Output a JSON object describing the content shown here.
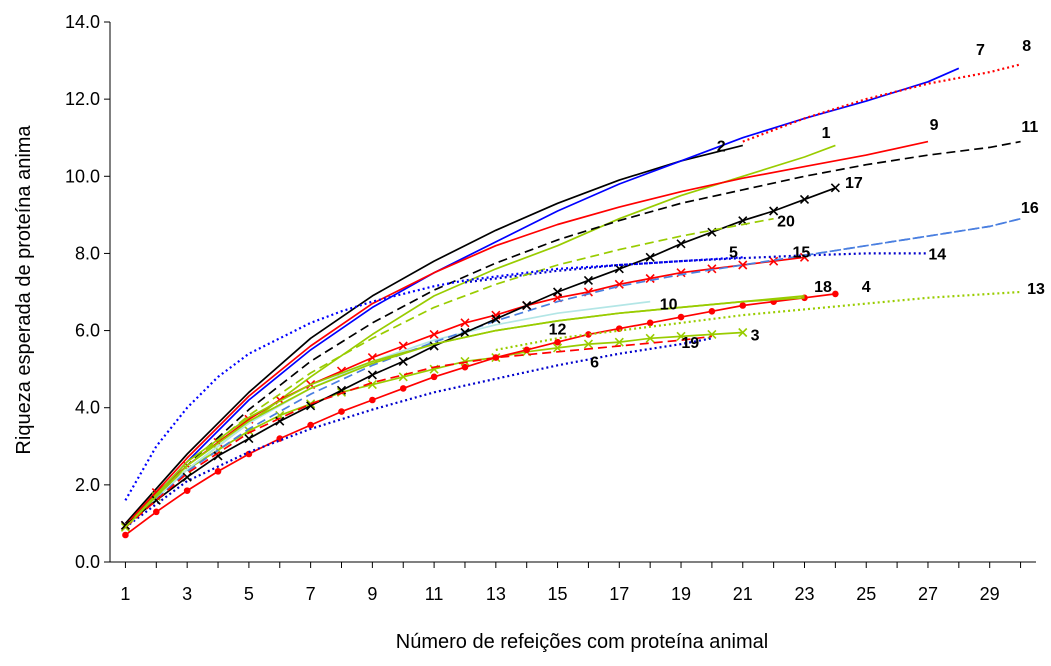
{
  "chart_data": {
    "type": "line",
    "title": "",
    "xlabel": "Número de refeições com proteína animal",
    "ylabel": "Riqueza esperada de proteína anima",
    "xlim": [
      0.5,
      30.5
    ],
    "ylim": [
      0,
      14
    ],
    "x_ticks": [
      "1",
      "3",
      "5",
      "7",
      "9",
      "11",
      "13",
      "15",
      "17",
      "19",
      "21",
      "23",
      "25",
      "27",
      "29"
    ],
    "y_ticks": [
      "0.0",
      "2.0",
      "4.0",
      "6.0",
      "8.0",
      "10.0",
      "12.0",
      "14.0"
    ],
    "grid": false,
    "legend": "none",
    "series": [
      {
        "name": "1",
        "color": "#99cc00",
        "dash": "solid",
        "marker": "none",
        "x": [
          1,
          3,
          5,
          7,
          9,
          11,
          13,
          15,
          17,
          19,
          21,
          23,
          24
        ],
        "y": [
          0.9,
          2.4,
          3.6,
          4.8,
          5.9,
          6.9,
          7.6,
          8.2,
          8.9,
          9.5,
          10.0,
          10.5,
          10.8
        ]
      },
      {
        "name": "2",
        "color": "#000000",
        "dash": "solid",
        "marker": "none",
        "x": [
          1,
          3,
          5,
          7,
          9,
          11,
          13,
          15,
          17,
          19,
          21
        ],
        "y": [
          1.0,
          2.8,
          4.4,
          5.8,
          6.9,
          7.8,
          8.6,
          9.3,
          9.9,
          10.4,
          10.8
        ]
      },
      {
        "name": "3",
        "color": "#99cc00",
        "dash": "solid",
        "marker": "x",
        "x": [
          1,
          2,
          3,
          4,
          5,
          6,
          7,
          8,
          9,
          10,
          11,
          12,
          13,
          14,
          15,
          16,
          17,
          18,
          19,
          20,
          21
        ],
        "y": [
          0.9,
          1.7,
          2.4,
          2.9,
          3.4,
          3.8,
          4.1,
          4.4,
          4.6,
          4.8,
          5.0,
          5.2,
          5.3,
          5.45,
          5.55,
          5.65,
          5.7,
          5.8,
          5.85,
          5.9,
          5.95
        ]
      },
      {
        "name": "4",
        "color": "#ff0000",
        "dash": "solid",
        "marker": "dot",
        "x": [
          1,
          2,
          3,
          4,
          5,
          6,
          7,
          8,
          9,
          10,
          11,
          12,
          13,
          14,
          15,
          16,
          17,
          18,
          19,
          20,
          21,
          22,
          23,
          24
        ],
        "y": [
          0.7,
          1.3,
          1.85,
          2.35,
          2.8,
          3.2,
          3.55,
          3.9,
          4.2,
          4.5,
          4.8,
          5.05,
          5.3,
          5.5,
          5.7,
          5.9,
          6.05,
          6.2,
          6.35,
          6.5,
          6.65,
          6.75,
          6.85,
          6.95
        ]
      },
      {
        "name": "5",
        "color": "#ff0000",
        "dash": "solid",
        "marker": "x",
        "x": [
          1,
          2,
          3,
          4,
          5,
          6,
          7,
          8,
          9,
          10,
          11,
          12,
          13,
          14,
          15,
          16,
          17,
          18,
          19,
          20,
          21,
          22,
          23
        ],
        "y": [
          0.95,
          1.8,
          2.5,
          3.1,
          3.7,
          4.2,
          4.6,
          4.95,
          5.3,
          5.6,
          5.9,
          6.2,
          6.4,
          6.65,
          6.85,
          7.0,
          7.2,
          7.35,
          7.5,
          7.6,
          7.7,
          7.8,
          7.9
        ]
      },
      {
        "name": "6",
        "color": "#0000cc",
        "dash": "dot",
        "marker": "none",
        "x": [
          1,
          3,
          5,
          7,
          9,
          11,
          13,
          15,
          17,
          19,
          20
        ],
        "y": [
          0.9,
          2.1,
          2.85,
          3.45,
          3.95,
          4.4,
          4.75,
          5.1,
          5.4,
          5.65,
          5.8
        ]
      },
      {
        "name": "7",
        "color": "#0000ff",
        "dash": "solid",
        "marker": "none",
        "x": [
          1,
          3,
          5,
          7,
          9,
          11,
          13,
          15,
          17,
          19,
          21,
          23,
          25,
          27,
          28
        ],
        "y": [
          0.9,
          2.6,
          4.2,
          5.5,
          6.6,
          7.5,
          8.3,
          9.1,
          9.8,
          10.4,
          11.0,
          11.5,
          11.95,
          12.45,
          12.8
        ]
      },
      {
        "name": "8",
        "color": "#ff0000",
        "dash": "dot",
        "marker": "none",
        "x": [
          21,
          23,
          25,
          27,
          29,
          30
        ],
        "y": [
          10.9,
          11.5,
          12.0,
          12.4,
          12.7,
          12.9
        ]
      },
      {
        "name": "9",
        "color": "#ff0000",
        "dash": "solid",
        "marker": "none",
        "x": [
          1,
          3,
          5,
          7,
          9,
          11,
          13,
          15,
          17,
          19,
          21,
          23,
          25,
          27
        ],
        "y": [
          0.95,
          2.7,
          4.3,
          5.6,
          6.7,
          7.5,
          8.2,
          8.75,
          9.2,
          9.6,
          9.95,
          10.25,
          10.55,
          10.9
        ]
      },
      {
        "name": "10",
        "color": "#b3e6e6",
        "dash": "solid",
        "marker": "none",
        "x": [
          1,
          3,
          5,
          7,
          9,
          11,
          13,
          15,
          17,
          18
        ],
        "y": [
          0.9,
          2.4,
          3.6,
          4.5,
          5.2,
          5.75,
          6.15,
          6.45,
          6.65,
          6.75
        ]
      },
      {
        "name": "11",
        "color": "#000000",
        "dash": "dash",
        "marker": "none",
        "x": [
          1,
          3,
          5,
          7,
          9,
          11,
          13,
          15,
          17,
          19,
          21,
          23,
          25,
          27,
          29,
          30
        ],
        "y": [
          0.9,
          2.5,
          3.95,
          5.2,
          6.2,
          7.05,
          7.75,
          8.35,
          8.85,
          9.3,
          9.65,
          10.0,
          10.3,
          10.55,
          10.75,
          10.9
        ]
      },
      {
        "name": "12",
        "color": "#99cc00",
        "dash": "solid",
        "marker": "none",
        "x": [
          1,
          3,
          5,
          7,
          9,
          11,
          13,
          15,
          17,
          19,
          21,
          23
        ],
        "y": [
          0.9,
          2.6,
          3.75,
          4.6,
          5.2,
          5.65,
          6.0,
          6.25,
          6.45,
          6.6,
          6.75,
          6.85
        ]
      },
      {
        "name": "13",
        "color": "#99cc00",
        "dash": "dot",
        "marker": "none",
        "x": [
          13,
          15,
          17,
          19,
          21,
          23,
          25,
          27,
          29,
          30
        ],
        "y": [
          5.5,
          5.8,
          6.0,
          6.2,
          6.4,
          6.55,
          6.7,
          6.85,
          6.95,
          7.0
        ]
      },
      {
        "name": "14",
        "color": "#0000cc",
        "dash": "dot",
        "marker": "none",
        "x": [
          12,
          13,
          14,
          15,
          16,
          17,
          19,
          21,
          23,
          25,
          27
        ],
        "y": [
          7.25,
          7.35,
          7.45,
          7.55,
          7.62,
          7.7,
          7.8,
          7.88,
          7.95,
          8.0,
          8.0
        ]
      },
      {
        "name": "15",
        "color": "#4a7fe0",
        "dash": "dash",
        "marker": "none",
        "x": [
          1,
          3,
          5,
          7,
          9,
          11,
          13,
          15,
          17,
          19,
          21,
          23,
          25,
          27,
          29,
          30
        ],
        "y": [
          0.9,
          2.35,
          3.45,
          4.35,
          5.1,
          5.7,
          6.25,
          6.75,
          7.15,
          7.45,
          7.7,
          7.95,
          8.2,
          8.45,
          8.7,
          8.9
        ]
      },
      {
        "name": "16",
        "color": "#4a7fe0",
        "dash": "dash",
        "marker": "none",
        "x": [
          23,
          25,
          27,
          29,
          30
        ],
        "y": [
          7.95,
          8.2,
          8.45,
          8.7,
          8.9
        ]
      },
      {
        "name": "17",
        "color": "#000000",
        "dash": "solid",
        "marker": "x",
        "x": [
          1,
          2,
          3,
          4,
          5,
          6,
          7,
          8,
          9,
          10,
          11,
          12,
          13,
          14,
          15,
          16,
          17,
          18,
          19,
          20,
          21,
          22,
          23,
          24
        ],
        "y": [
          0.95,
          1.6,
          2.2,
          2.75,
          3.2,
          3.65,
          4.05,
          4.45,
          4.85,
          5.2,
          5.6,
          5.95,
          6.3,
          6.65,
          7.0,
          7.3,
          7.6,
          7.9,
          8.25,
          8.55,
          8.85,
          9.1,
          9.4,
          9.7
        ]
      },
      {
        "name": "18",
        "color": "#99cc00",
        "dash": "solid",
        "marker": "none",
        "x": [
          1,
          3,
          5,
          7,
          9,
          11,
          13,
          15,
          17,
          19,
          21,
          23
        ],
        "y": [
          0.9,
          2.5,
          3.65,
          4.5,
          5.15,
          5.65,
          6.0,
          6.25,
          6.45,
          6.6,
          6.75,
          6.9
        ]
      },
      {
        "name": "19",
        "color": "#ff0000",
        "dash": "dash",
        "marker": "none",
        "x": [
          1,
          3,
          5,
          7,
          9,
          11,
          13,
          15,
          17,
          19,
          20
        ],
        "y": [
          0.9,
          2.3,
          3.35,
          4.1,
          4.65,
          5.05,
          5.3,
          5.45,
          5.6,
          5.75,
          5.85
        ]
      },
      {
        "name": "20",
        "color": "#99cc00",
        "dash": "dash",
        "marker": "none",
        "x": [
          1,
          3,
          5,
          7,
          9,
          11,
          13,
          15,
          17,
          19,
          21,
          22
        ],
        "y": [
          0.9,
          2.5,
          3.8,
          4.9,
          5.8,
          6.6,
          7.2,
          7.7,
          8.1,
          8.45,
          8.75,
          8.9
        ]
      },
      {
        "name": "",
        "color": "#0000ff",
        "dash": "dot",
        "marker": "none",
        "x": [
          1,
          2,
          3,
          4,
          5,
          6,
          7,
          8,
          9,
          10,
          11,
          12,
          13,
          14,
          15,
          16,
          17,
          18,
          19,
          20,
          21
        ],
        "y": [
          1.6,
          3.0,
          4.0,
          4.8,
          5.4,
          5.8,
          6.2,
          6.5,
          6.75,
          6.95,
          7.15,
          7.3,
          7.4,
          7.5,
          7.6,
          7.65,
          7.7,
          7.75,
          7.8,
          7.85,
          7.9
        ]
      }
    ],
    "curve_labels": [
      {
        "text": "7",
        "x": 28.7,
        "y": 13.3
      },
      {
        "text": "8",
        "x": 30.2,
        "y": 13.4
      },
      {
        "text": "9",
        "x": 27.2,
        "y": 11.35
      },
      {
        "text": "11",
        "x": 30.3,
        "y": 11.3
      },
      {
        "text": "1",
        "x": 23.7,
        "y": 11.15
      },
      {
        "text": "2",
        "x": 20.3,
        "y": 10.8
      },
      {
        "text": "17",
        "x": 24.6,
        "y": 9.85
      },
      {
        "text": "20",
        "x": 22.4,
        "y": 8.85
      },
      {
        "text": "16",
        "x": 30.3,
        "y": 9.2
      },
      {
        "text": "5",
        "x": 20.7,
        "y": 8.05
      },
      {
        "text": "15",
        "x": 22.9,
        "y": 8.05
      },
      {
        "text": "14",
        "x": 27.3,
        "y": 8.0
      },
      {
        "text": "18",
        "x": 23.6,
        "y": 7.15
      },
      {
        "text": "4",
        "x": 25.0,
        "y": 7.15
      },
      {
        "text": "13",
        "x": 30.5,
        "y": 7.1
      },
      {
        "text": "10",
        "x": 18.6,
        "y": 6.7
      },
      {
        "text": "12",
        "x": 15.0,
        "y": 6.05
      },
      {
        "text": "3",
        "x": 21.4,
        "y": 5.9
      },
      {
        "text": "19",
        "x": 19.3,
        "y": 5.7
      },
      {
        "text": "6",
        "x": 16.2,
        "y": 5.2
      }
    ]
  }
}
